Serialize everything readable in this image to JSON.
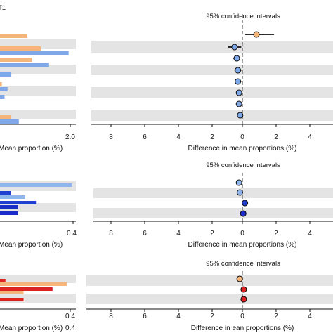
{
  "colors": {
    "orange": "#f5b57a",
    "light_blue": "#7fa8e8",
    "mid_blue": "#8fb5ec",
    "blue": "#1f3fd1",
    "dark_blue": "#1a2fc9",
    "red": "#dd2222",
    "band": "#e4e4e4",
    "zero_line": "#666666"
  },
  "chart_data": [
    {
      "type": "bar",
      "panel": "top-left",
      "title": "T1",
      "xlabel": "Mean proportion (%)",
      "tick_labels": [
        "2.0"
      ],
      "bars": [
        {
          "row": 0,
          "color": "orange",
          "value": 0.72
        },
        {
          "row": 1,
          "color": "orange",
          "value": 1.08
        },
        {
          "row": 1,
          "color": "light_blue",
          "value": 1.82
        },
        {
          "row": 2,
          "color": "orange",
          "value": 0.85
        },
        {
          "row": 2,
          "color": "light_blue",
          "value": 1.3
        },
        {
          "row": 3,
          "color": "light_blue",
          "value": 0.3
        },
        {
          "row": 4,
          "color": "orange",
          "value": 0.05
        },
        {
          "row": 4,
          "color": "light_blue",
          "value": 0.2
        },
        {
          "row": 5,
          "color": "light_blue",
          "value": 0.12
        },
        {
          "row": 6,
          "color": "orange",
          "value": 0.3
        },
        {
          "row": 6,
          "color": "light_blue",
          "value": 0.5
        }
      ]
    },
    {
      "type": "scatter",
      "panel": "top-right",
      "title": "95% confidence intervals",
      "xlabel": "Difference in mean proportions (%)",
      "tick_labels": [
        "8",
        "6",
        "4",
        "2",
        "0",
        "2",
        "4"
      ],
      "points": [
        {
          "row": 0,
          "estimate": -0.8,
          "low": -1.8,
          "high": 0.2,
          "color": "orange"
        },
        {
          "row": 1,
          "estimate": 0.7,
          "low": 0.1,
          "high": 1.3,
          "color": "light_blue"
        },
        {
          "row": 2,
          "estimate": 0.5,
          "low": 0.2,
          "high": 0.8,
          "color": "light_blue"
        },
        {
          "row": 3,
          "estimate": 0.4,
          "low": 0.1,
          "high": 0.7,
          "color": "light_blue"
        },
        {
          "row": 4,
          "estimate": 0.4,
          "low": 0.1,
          "high": 0.6,
          "color": "light_blue"
        },
        {
          "row": 5,
          "estimate": 0.3,
          "low": 0.1,
          "high": 0.5,
          "color": "light_blue"
        },
        {
          "row": 6,
          "estimate": 0.3,
          "low": 0.1,
          "high": 0.4,
          "color": "light_blue"
        },
        {
          "row": 7,
          "estimate": 0.2,
          "low": 0.05,
          "high": 0.35,
          "color": "light_blue"
        }
      ]
    },
    {
      "type": "bar",
      "panel": "middle-left",
      "title": "",
      "xlabel": "Mean proportion (%)",
      "tick_labels": [
        "0.4"
      ],
      "bars": [
        {
          "row": 0,
          "color": "mid_blue",
          "value": 0.4
        },
        {
          "row": 1,
          "color": "blue",
          "value": 0.06
        },
        {
          "row": 1,
          "color": "mid_blue",
          "value": 0.14
        },
        {
          "row": 2,
          "color": "blue",
          "value": 0.2
        },
        {
          "row": 2,
          "color": "dark_blue",
          "value": 0.1
        },
        {
          "row": 3,
          "color": "dark_blue",
          "value": 0.1
        }
      ]
    },
    {
      "type": "scatter",
      "panel": "middle-right",
      "title": "95% confidence intervals",
      "xlabel": "Difference in mean proportions (%)",
      "tick_labels": [
        "8",
        "6",
        "4",
        "2",
        "0",
        "2",
        "4"
      ],
      "points": [
        {
          "row": 0,
          "estimate": 0.4,
          "low": 0.1,
          "high": 0.7,
          "color": "mid_blue"
        },
        {
          "row": 1,
          "estimate": 0.3,
          "low": 0.05,
          "high": 0.55,
          "color": "mid_blue"
        },
        {
          "row": 2,
          "estimate": -0.3,
          "low": -0.6,
          "high": 0.0,
          "color": "blue"
        },
        {
          "row": 3,
          "estimate": -0.1,
          "low": -0.25,
          "high": 0.05,
          "color": "dark_blue"
        }
      ]
    },
    {
      "type": "bar",
      "panel": "bottom-left",
      "title": "",
      "xlabel": "Mean proportion (%)",
      "tick_labels": [
        "0.4",
        "0.4"
      ],
      "bars": [
        {
          "row": 0,
          "color": "red",
          "value": 0.03
        },
        {
          "row": 0,
          "color": "orange",
          "value": 0.37
        },
        {
          "row": 1,
          "color": "red",
          "value": 0.29
        },
        {
          "row": 1,
          "color": "orange",
          "value": 0.13
        },
        {
          "row": 2,
          "color": "red",
          "value": 0.13
        }
      ]
    },
    {
      "type": "scatter",
      "panel": "bottom-right",
      "title": "95% confidence intervals",
      "xlabel": "Difference in  ean proportions (%)",
      "tick_labels": [
        "8",
        "6",
        "4",
        "2",
        "0",
        "2",
        "4"
      ],
      "points": [
        {
          "row": 0,
          "estimate": 0.4,
          "low": 0.15,
          "high": 0.65,
          "color": "orange"
        },
        {
          "row": 1,
          "estimate": -0.2,
          "low": -0.4,
          "high": 0.0,
          "color": "red"
        },
        {
          "row": 2,
          "estimate": -0.2,
          "low": -0.35,
          "high": -0.05,
          "color": "red"
        }
      ]
    }
  ]
}
